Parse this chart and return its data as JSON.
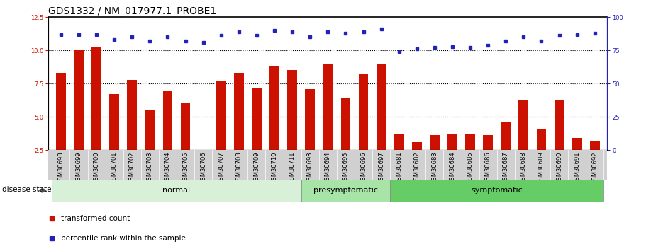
{
  "title": "GDS1332 / NM_017977.1_PROBE1",
  "samples": [
    "GSM30698",
    "GSM30699",
    "GSM30700",
    "GSM30701",
    "GSM30702",
    "GSM30703",
    "GSM30704",
    "GSM30705",
    "GSM30706",
    "GSM30707",
    "GSM30708",
    "GSM30709",
    "GSM30710",
    "GSM30711",
    "GSM30693",
    "GSM30694",
    "GSM30695",
    "GSM30696",
    "GSM30697",
    "GSM30681",
    "GSM30682",
    "GSM30683",
    "GSM30684",
    "GSM30685",
    "GSM30686",
    "GSM30687",
    "GSM30688",
    "GSM30689",
    "GSM30690",
    "GSM30691",
    "GSM30692"
  ],
  "bar_values": [
    8.3,
    10.0,
    10.2,
    6.7,
    7.8,
    5.5,
    7.0,
    6.0,
    2.5,
    7.7,
    8.3,
    7.2,
    8.8,
    8.5,
    7.1,
    9.0,
    6.4,
    8.2,
    9.0,
    3.7,
    3.1,
    3.6,
    3.7,
    3.7,
    3.6,
    4.6,
    6.3,
    4.1,
    6.3,
    3.4,
    3.2
  ],
  "dot_values_pct": [
    87,
    87,
    87,
    83,
    85,
    82,
    85,
    82,
    81,
    86,
    89,
    86,
    90,
    89,
    85,
    89,
    88,
    89,
    91,
    74,
    76,
    77,
    78,
    77,
    79,
    82,
    85,
    82,
    86,
    87,
    88
  ],
  "bar_color": "#cc1100",
  "dot_color": "#2222bb",
  "ylim_left": [
    2.5,
    12.5
  ],
  "ylim_right": [
    0,
    100
  ],
  "yticks_left": [
    2.5,
    5.0,
    7.5,
    10.0,
    12.5
  ],
  "yticks_right": [
    0,
    25,
    50,
    75,
    100
  ],
  "group_defs": [
    {
      "name": "normal",
      "start": 0,
      "end": 14,
      "color": "#d8f0d8"
    },
    {
      "name": "presymptomatic",
      "start": 14,
      "end": 19,
      "color": "#a8e4a8"
    },
    {
      "name": "symptomatic",
      "start": 19,
      "end": 31,
      "color": "#66cc66"
    }
  ],
  "legend_items": [
    {
      "label": "transformed count",
      "color": "#cc1100"
    },
    {
      "label": "percentile rank within the sample",
      "color": "#2222bb"
    }
  ],
  "disease_state_label": "disease state",
  "title_fontsize": 10,
  "tick_fontsize": 6,
  "group_fontsize": 8
}
